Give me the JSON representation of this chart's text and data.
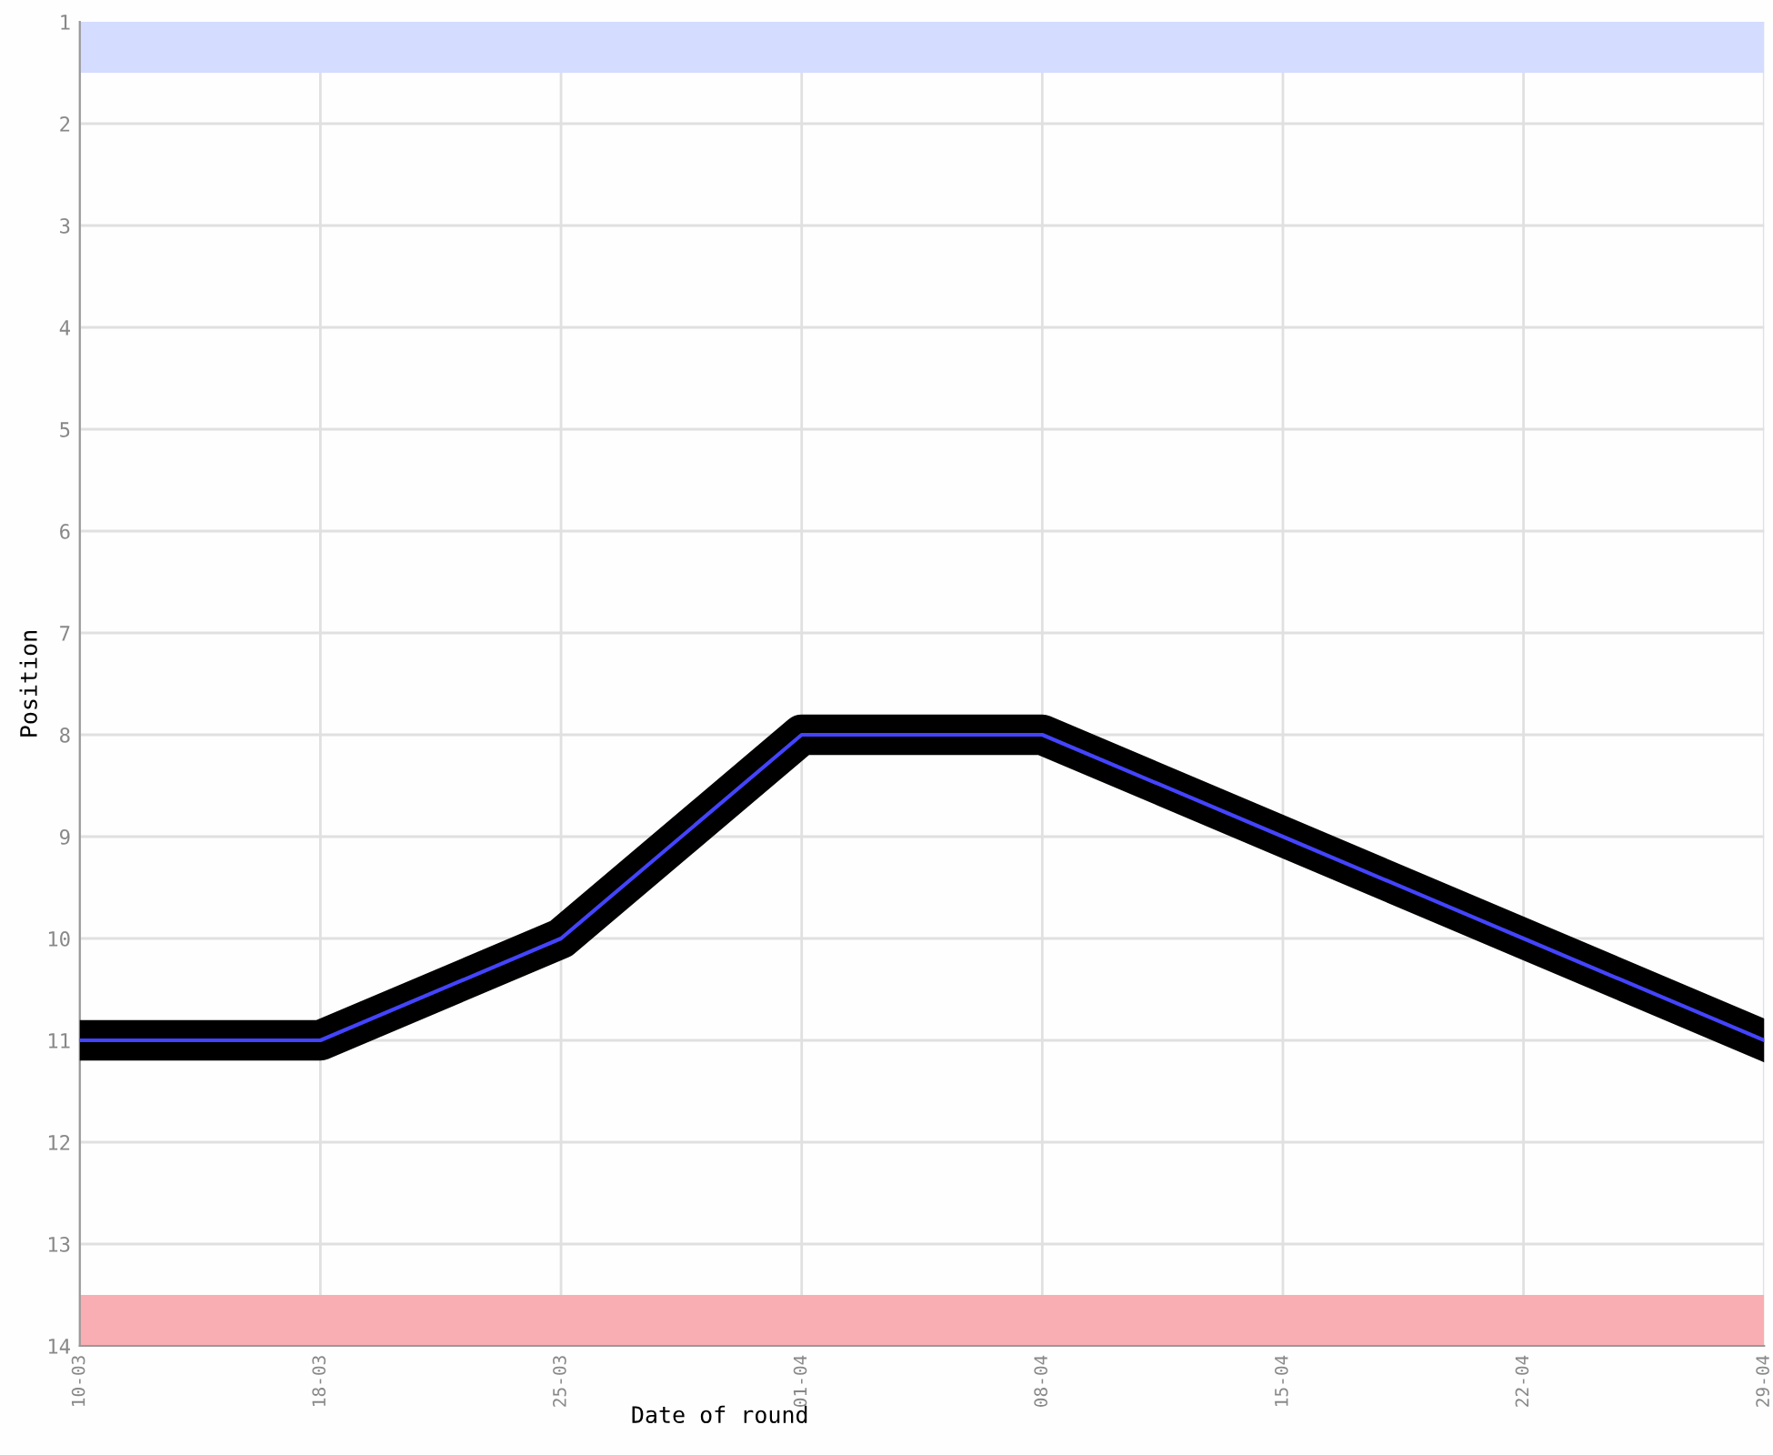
{
  "chart_data": {
    "type": "line",
    "xlabel": "Date of round",
    "ylabel": "Position",
    "categories": [
      "10-03",
      "18-03",
      "25-03",
      "01-04",
      "08-04",
      "15-04",
      "22-04",
      "29-04"
    ],
    "series": [
      {
        "color": "#4444ff",
        "values": [
          11,
          11,
          10,
          8,
          8,
          9,
          10,
          11
        ]
      }
    ],
    "ylim": [
      14,
      1
    ],
    "yticks": [
      1,
      2,
      3,
      4,
      5,
      6,
      7,
      8,
      9,
      10,
      11,
      12,
      13,
      14
    ],
    "bands": [
      {
        "axis": "y",
        "from": 1,
        "to": 1.5,
        "color": "#d4dcff"
      },
      {
        "axis": "y",
        "from": 13.5,
        "to": 14,
        "color": "#f9aeb3"
      }
    ],
    "grid": true,
    "legend": false,
    "marker": "none",
    "line_style": "solid"
  }
}
